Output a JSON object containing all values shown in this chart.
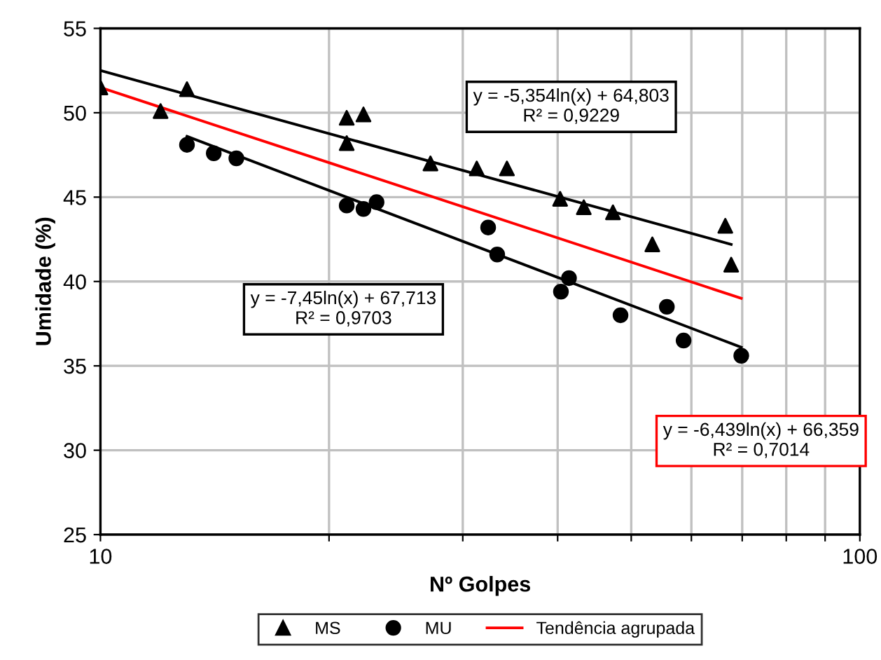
{
  "chart_data": {
    "type": "scatter",
    "xlabel": "Nº Golpes",
    "ylabel": "Umidade (%)",
    "log": "x",
    "xlim": [
      10,
      100
    ],
    "ylim": [
      25,
      55
    ],
    "xticks": [
      10,
      {
        "value": 20,
        "label": null
      },
      {
        "value": 30,
        "label": null
      },
      {
        "value": 40,
        "label": null
      },
      {
        "value": 50,
        "label": null
      },
      {
        "value": 60,
        "label": null
      },
      {
        "value": 70,
        "label": null
      },
      {
        "value": 80,
        "label": null
      },
      {
        "value": 90,
        "label": null
      },
      100
    ],
    "yticks": [
      25,
      30,
      35,
      40,
      45,
      50,
      55
    ],
    "grid": true,
    "legend": "bottom",
    "series": [
      {
        "name": "MS",
        "marker": "triangle",
        "color": "#000000",
        "x": [
          10,
          12.0,
          13.0,
          21.1,
          21.1,
          22.2,
          27.2,
          31.3,
          34.3,
          40.3,
          43.3,
          47.3,
          53.3,
          66.5,
          67.7
        ],
        "values": [
          51.5,
          50.1,
          51.4,
          49.7,
          48.2,
          49.9,
          47.0,
          46.7,
          46.7,
          44.9,
          44.4,
          44.1,
          42.2,
          43.3,
          41.0
        ]
      },
      {
        "name": "MU",
        "marker": "circle",
        "color": "#000000",
        "x": [
          13.0,
          14.1,
          15.1,
          21.1,
          22.2,
          23.1,
          32.4,
          33.3,
          40.4,
          41.4,
          48.4,
          55.7,
          58.6,
          69.8
        ],
        "values": [
          48.1,
          47.6,
          47.3,
          44.5,
          44.3,
          44.7,
          43.2,
          41.6,
          39.4,
          40.2,
          38.0,
          38.5,
          36.5,
          35.6
        ]
      },
      {
        "type": "line",
        "color": "#000000",
        "x": [
          10,
          67.7
        ],
        "values": [
          52.5,
          42.2
        ]
      },
      {
        "type": "line",
        "color": "#000000",
        "x": [
          13,
          69.8
        ],
        "values": [
          48.6,
          36.1
        ]
      },
      {
        "name": "Tendência agrupada",
        "type": "line",
        "color": "#ff0000",
        "x": [
          10,
          69.8
        ],
        "values": [
          51.5,
          39.0
        ]
      }
    ],
    "annotations": [
      "y = -5,354ln(x) + 64,803\nR² = 0,9229",
      "y = -7,45ln(x) + 67,713\nR² = 0,9703",
      "y = -6,439ln(x) + 66,359\nR² = 0,7014"
    ]
  }
}
